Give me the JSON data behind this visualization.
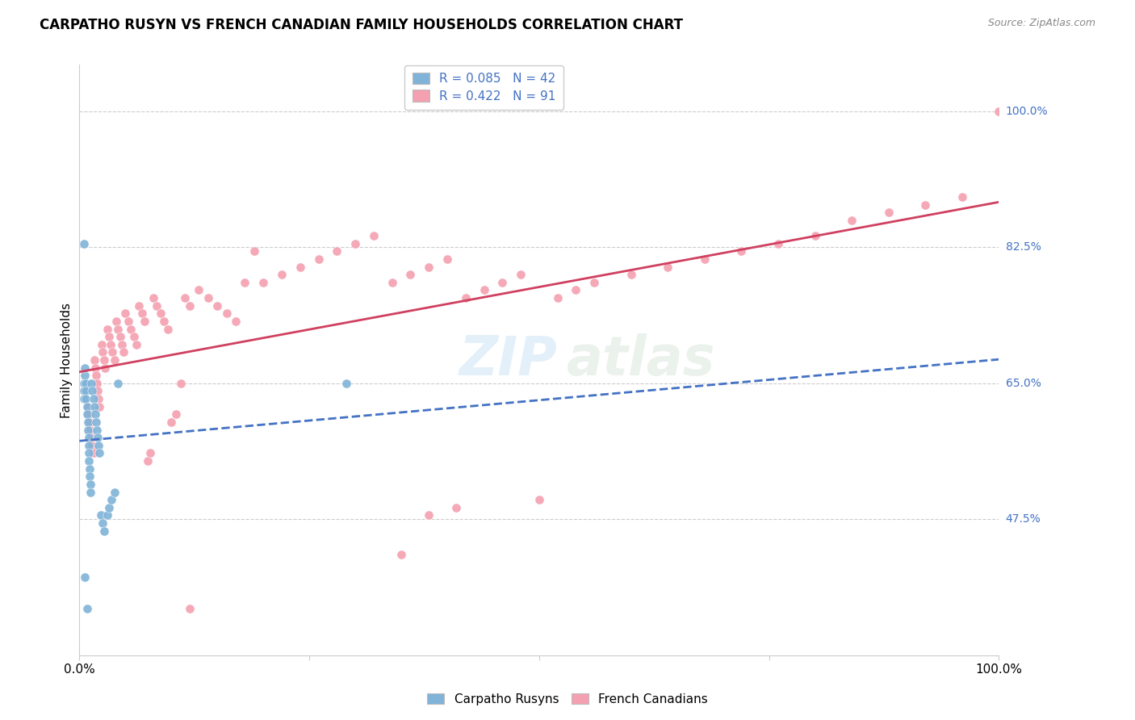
{
  "title": "CARPATHO RUSYN VS FRENCH CANADIAN FAMILY HOUSEHOLDS CORRELATION CHART",
  "source": "Source: ZipAtlas.com",
  "ylabel": "Family Households",
  "ytick_values": [
    1.0,
    0.825,
    0.65,
    0.475
  ],
  "ytick_labels": [
    "100.0%",
    "82.5%",
    "65.0%",
    "47.5%"
  ],
  "xlim": [
    0.0,
    1.0
  ],
  "ylim": [
    0.3,
    1.06
  ],
  "legend_label_blue": "R = 0.085   N = 42",
  "legend_label_pink": "R = 0.422   N = 91",
  "color_blue": "#7fb3d8",
  "color_pink": "#f4a0b0",
  "trendline_blue_color": "#4472c4",
  "trendline_pink_color": "#d04060",
  "background_color": "#ffffff",
  "grid_color": "#cccccc",
  "right_label_color": "#4472c4",
  "carpatho_rusyn_x": [
    0.005,
    0.005,
    0.005,
    0.006,
    0.006,
    0.007,
    0.007,
    0.007,
    0.008,
    0.008,
    0.009,
    0.009,
    0.01,
    0.01,
    0.01,
    0.01,
    0.011,
    0.011,
    0.012,
    0.012,
    0.013,
    0.014,
    0.015,
    0.016,
    0.017,
    0.018,
    0.019,
    0.02,
    0.021,
    0.022,
    0.023,
    0.025,
    0.027,
    0.03,
    0.032,
    0.035,
    0.038,
    0.042,
    0.005,
    0.006,
    0.29,
    0.008
  ],
  "carpatho_rusyn_y": [
    0.65,
    0.64,
    0.63,
    0.66,
    0.67,
    0.65,
    0.64,
    0.63,
    0.62,
    0.61,
    0.6,
    0.59,
    0.58,
    0.57,
    0.56,
    0.55,
    0.54,
    0.53,
    0.52,
    0.51,
    0.65,
    0.64,
    0.63,
    0.62,
    0.61,
    0.6,
    0.59,
    0.58,
    0.57,
    0.56,
    0.48,
    0.47,
    0.46,
    0.48,
    0.49,
    0.5,
    0.51,
    0.65,
    0.83,
    0.4,
    0.65,
    0.36
  ],
  "french_canadian_x": [
    0.005,
    0.007,
    0.009,
    0.01,
    0.011,
    0.012,
    0.013,
    0.014,
    0.015,
    0.016,
    0.017,
    0.018,
    0.019,
    0.02,
    0.021,
    0.022,
    0.024,
    0.025,
    0.027,
    0.028,
    0.03,
    0.032,
    0.034,
    0.036,
    0.038,
    0.04,
    0.042,
    0.044,
    0.046,
    0.048,
    0.05,
    0.053,
    0.056,
    0.059,
    0.062,
    0.065,
    0.068,
    0.071,
    0.074,
    0.077,
    0.08,
    0.084,
    0.088,
    0.092,
    0.096,
    0.1,
    0.105,
    0.11,
    0.115,
    0.12,
    0.13,
    0.14,
    0.15,
    0.16,
    0.17,
    0.18,
    0.19,
    0.2,
    0.22,
    0.24,
    0.26,
    0.28,
    0.3,
    0.32,
    0.34,
    0.36,
    0.38,
    0.4,
    0.42,
    0.44,
    0.46,
    0.48,
    0.5,
    0.52,
    0.54,
    0.56,
    0.6,
    0.64,
    0.68,
    0.72,
    0.76,
    0.8,
    0.84,
    0.88,
    0.92,
    0.96,
    0.38,
    0.41,
    0.35,
    1.0,
    0.12
  ],
  "french_canadian_y": [
    0.64,
    0.65,
    0.62,
    0.61,
    0.6,
    0.59,
    0.58,
    0.57,
    0.56,
    0.68,
    0.67,
    0.66,
    0.65,
    0.64,
    0.63,
    0.62,
    0.7,
    0.69,
    0.68,
    0.67,
    0.72,
    0.71,
    0.7,
    0.69,
    0.68,
    0.73,
    0.72,
    0.71,
    0.7,
    0.69,
    0.74,
    0.73,
    0.72,
    0.71,
    0.7,
    0.75,
    0.74,
    0.73,
    0.55,
    0.56,
    0.76,
    0.75,
    0.74,
    0.73,
    0.72,
    0.6,
    0.61,
    0.65,
    0.76,
    0.75,
    0.77,
    0.76,
    0.75,
    0.74,
    0.73,
    0.78,
    0.82,
    0.78,
    0.79,
    0.8,
    0.81,
    0.82,
    0.83,
    0.84,
    0.78,
    0.79,
    0.8,
    0.81,
    0.76,
    0.77,
    0.78,
    0.79,
    0.5,
    0.76,
    0.77,
    0.78,
    0.79,
    0.8,
    0.81,
    0.82,
    0.83,
    0.84,
    0.86,
    0.87,
    0.88,
    0.89,
    0.48,
    0.49,
    0.43,
    1.0,
    0.36
  ]
}
